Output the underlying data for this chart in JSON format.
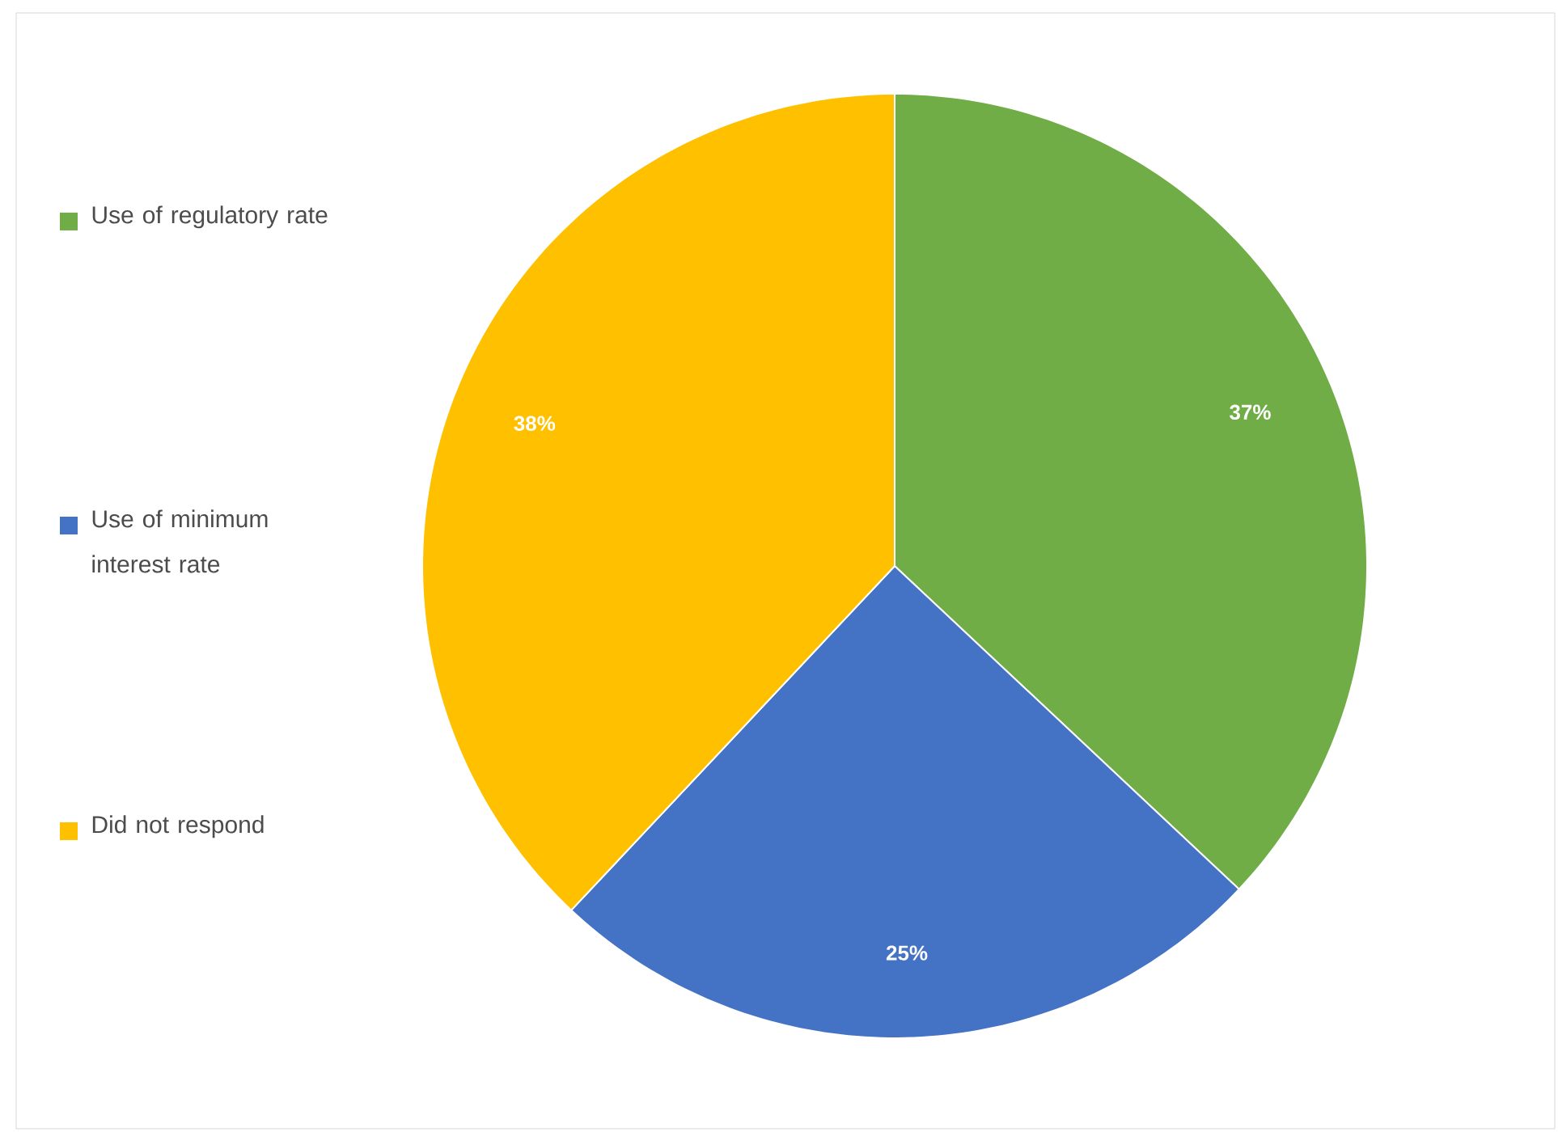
{
  "chart_data": {
    "type": "pie",
    "categories": [
      "Use of regulatory rate",
      "Use of minimum interest rate",
      "Did not respond"
    ],
    "values": [
      37,
      25,
      38
    ],
    "value_labels": [
      "37%",
      "25%",
      "38%"
    ],
    "colors": [
      "#70ad47",
      "#4472c4",
      "#ffc000"
    ],
    "legend": "left"
  }
}
